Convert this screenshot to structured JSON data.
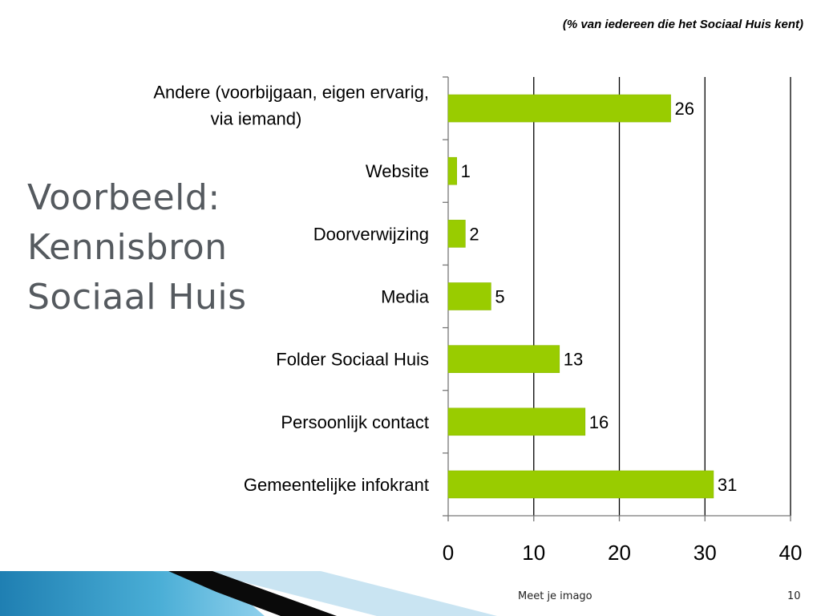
{
  "slide": {
    "title_lines": [
      "Voorbeeld:",
      "Kennisbron",
      "Sociaal Huis"
    ],
    "note": "(% van iedereen die het Sociaal Huis kent)",
    "footer_caption": "Meet je imago",
    "page_number": "10"
  },
  "colors": {
    "bar": "#99cc00",
    "grid": "#000000",
    "title": "#555a5f",
    "band_dark": "#0a0a0a",
    "band_blue": "#4aaed6",
    "band_light": "#c9e4f2"
  },
  "chart_data": {
    "type": "bar",
    "orientation": "horizontal",
    "categories": [
      "Andere (voorbijgaan, eigen ervarig, via iemand)",
      "Website",
      "Doorverwijzing",
      "Media",
      "Folder Sociaal Huis",
      "Persoonlijk contact",
      "Gemeentelijke infokrant"
    ],
    "category_label_lines": [
      [
        "Andere (voorbijgaan, eigen ervarig,",
        "via iemand)"
      ],
      [
        "Website"
      ],
      [
        "Doorverwijzing"
      ],
      [
        "Media"
      ],
      [
        "Folder Sociaal Huis"
      ],
      [
        "Persoonlijk contact"
      ],
      [
        "Gemeentelijke infokrant"
      ]
    ],
    "values": [
      26,
      1,
      2,
      5,
      13,
      16,
      31
    ],
    "data_labels": [
      "26",
      "1",
      "2",
      "5",
      "13",
      "16",
      "31"
    ],
    "xlim": [
      0,
      40
    ],
    "x_ticks": [
      0,
      10,
      20,
      30,
      40
    ],
    "x_tick_labels": [
      "0",
      "10",
      "20",
      "30",
      "40"
    ],
    "grid": "vertical",
    "legend": "none"
  }
}
